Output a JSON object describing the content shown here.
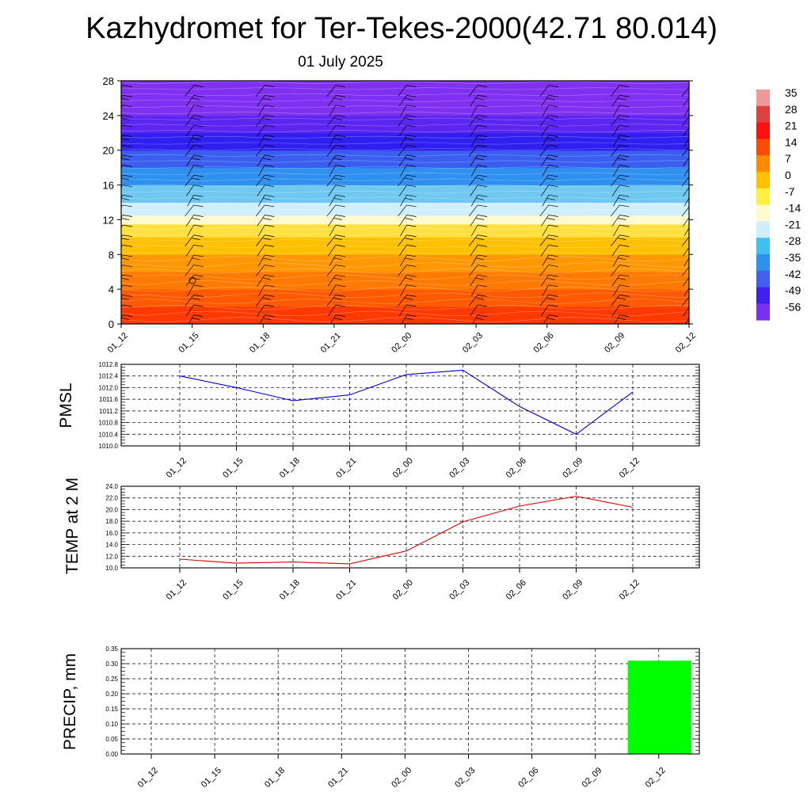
{
  "title": "Kazhydromet for Ter-Tekes-2000(42.71 80.014)",
  "subtitle": "01 July 2025",
  "colorbar": {
    "labels": [
      "35",
      "28",
      "21",
      "14",
      "7",
      "0",
      "-7",
      "-14",
      "-21",
      "-28",
      "-35",
      "-42",
      "-49",
      "-56"
    ],
    "colors": [
      "#ef9a9a",
      "#e04040",
      "#ff1010",
      "#ff4a00",
      "#ff8a00",
      "#ffc000",
      "#fff040",
      "#fffad0",
      "#cfefff",
      "#40c0f0",
      "#3090f0",
      "#4060f0",
      "#4020f0",
      "#7a30f0"
    ]
  },
  "chart_data": [
    {
      "type": "heatmap",
      "name": "upper-air",
      "x": [
        "01_12",
        "01_15",
        "01_18",
        "01_21",
        "02_00",
        "02_03",
        "02_06",
        "02_09",
        "02_12"
      ],
      "y_ticks": [
        "0",
        "4",
        "8",
        "12",
        "16",
        "20",
        "24",
        "28"
      ],
      "ylim": [
        0,
        28
      ],
      "bands": [
        {
          "y0": 0,
          "y1": 2,
          "color": "#ff3a00"
        },
        {
          "y0": 2,
          "y1": 4,
          "color": "#ff5a00"
        },
        {
          "y0": 4,
          "y1": 6,
          "color": "#ff7a00"
        },
        {
          "y0": 6,
          "y1": 8,
          "color": "#ff9800"
        },
        {
          "y0": 8,
          "y1": 10,
          "color": "#ffc000"
        },
        {
          "y0": 10,
          "y1": 11.5,
          "color": "#ffe040"
        },
        {
          "y0": 11.5,
          "y1": 12.5,
          "color": "#fffad0"
        },
        {
          "y0": 12.5,
          "y1": 14,
          "color": "#cfefff"
        },
        {
          "y0": 14,
          "y1": 16,
          "color": "#70c8f0"
        },
        {
          "y0": 16,
          "y1": 18,
          "color": "#3090f0"
        },
        {
          "y0": 18,
          "y1": 20,
          "color": "#3a5ef0"
        },
        {
          "y0": 20,
          "y1": 22,
          "color": "#3020f0"
        },
        {
          "y0": 22,
          "y1": 24,
          "color": "#5a26f0"
        },
        {
          "y0": 24,
          "y1": 28,
          "color": "#8030f0"
        }
      ]
    },
    {
      "type": "line",
      "name": "pmsl",
      "ylabel": "PMSL",
      "x": [
        "01_12",
        "01_15",
        "01_18",
        "01_21",
        "02_00",
        "02_03",
        "02_06",
        "02_09",
        "02_12"
      ],
      "y_ticks": [
        "1010.0",
        "1010.4",
        "1010.8",
        "1011.2",
        "1011.6",
        "1012.0",
        "1012.4",
        "1012.8"
      ],
      "values": [
        1012.4,
        1012.0,
        1011.55,
        1011.75,
        1012.45,
        1012.6,
        1011.35,
        1010.4,
        1011.85
      ],
      "ylim": [
        1010.0,
        1012.8
      ],
      "color": "#0000cc"
    },
    {
      "type": "line",
      "name": "temp",
      "ylabel": "TEMP at 2 M",
      "x": [
        "01_12",
        "01_15",
        "01_18",
        "01_21",
        "02_00",
        "02_03",
        "02_06",
        "02_09",
        "02_12"
      ],
      "y_ticks": [
        "10.0",
        "12.0",
        "14.0",
        "16.0",
        "18.0",
        "20.0",
        "22.0",
        "24.0"
      ],
      "values": [
        11.5,
        10.8,
        11.0,
        10.7,
        12.9,
        17.9,
        20.6,
        22.3,
        20.4
      ],
      "ylim": [
        10.0,
        24.0
      ],
      "color": "#dd0000"
    },
    {
      "type": "bar",
      "name": "precip",
      "ylabel": "PRECIP, mm",
      "x": [
        "01_12",
        "01_15",
        "01_18",
        "01_21",
        "02_00",
        "02_03",
        "02_06",
        "02_09",
        "02_12"
      ],
      "y_ticks": [
        "0.00",
        "0.05",
        "0.10",
        "0.15",
        "0.20",
        "0.25",
        "0.30",
        "0.35"
      ],
      "values": [
        0,
        0,
        0,
        0,
        0,
        0,
        0,
        0,
        0.31
      ],
      "ylim": [
        0,
        0.35
      ],
      "color": "#00ff00"
    }
  ]
}
